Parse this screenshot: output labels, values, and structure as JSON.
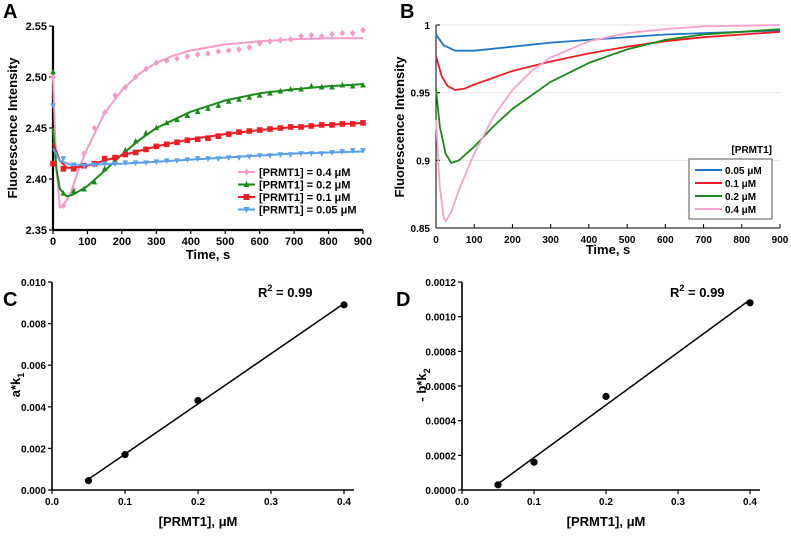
{
  "chart_data": [
    {
      "id": "A",
      "panel_label": "A",
      "type": "scatter",
      "xlabel": "Time, s",
      "ylabel": "Fluorescence Intensity",
      "xlim": [
        0,
        900
      ],
      "ylim": [
        2.35,
        2.55
      ],
      "xticks": [
        "0",
        "100",
        "200",
        "300",
        "400",
        "500",
        "600",
        "700",
        "800",
        "900"
      ],
      "xtick_values": [
        0,
        100,
        200,
        300,
        400,
        500,
        600,
        700,
        800,
        900
      ],
      "yticks": [
        "2.35",
        "2.40",
        "2.45",
        "2.50",
        "2.55"
      ],
      "ytick_values": [
        2.35,
        2.4,
        2.45,
        2.5,
        2.55
      ],
      "legend_position": "bottom-right",
      "marker_x": [
        0,
        30,
        60,
        90,
        120,
        150,
        180,
        210,
        240,
        270,
        300,
        330,
        360,
        390,
        420,
        450,
        480,
        510,
        540,
        570,
        600,
        630,
        660,
        690,
        720,
        750,
        780,
        810,
        840,
        870,
        900
      ],
      "series": [
        {
          "name": "[PRMT1] = 0.4 μM",
          "color": "#f39cc8",
          "marker": "diamond",
          "fit_x": [
            0,
            10,
            20,
            30,
            50,
            75,
            100,
            150,
            200,
            250,
            300,
            350,
            400,
            500,
            600,
            700,
            800,
            900
          ],
          "fit_y": [
            2.5,
            2.41,
            2.372,
            2.374,
            2.385,
            2.41,
            2.43,
            2.465,
            2.487,
            2.503,
            2.514,
            2.521,
            2.526,
            2.532,
            2.535,
            2.537,
            2.538,
            2.538
          ],
          "marker_y": [
            2.5,
            2.374,
            2.39,
            2.425,
            2.45,
            2.465,
            2.482,
            2.49,
            2.5,
            2.508,
            2.514,
            2.516,
            2.518,
            2.52,
            2.522,
            2.523,
            2.525,
            2.526,
            2.527,
            2.529,
            2.533,
            2.535,
            2.536,
            2.537,
            2.54,
            2.541,
            2.54,
            2.542,
            2.543,
            2.543,
            2.546
          ]
        },
        {
          "name": "[PRMT1] = 0.2 μM",
          "color": "#1a8a1a",
          "marker": "triangle-up",
          "fit_x": [
            0,
            10,
            20,
            40,
            60,
            100,
            150,
            200,
            250,
            300,
            400,
            500,
            600,
            700,
            800,
            900
          ],
          "fit_y": [
            2.45,
            2.41,
            2.39,
            2.383,
            2.385,
            2.393,
            2.408,
            2.424,
            2.438,
            2.45,
            2.466,
            2.477,
            2.484,
            2.488,
            2.491,
            2.493
          ],
          "marker_y": [
            2.505,
            2.386,
            2.388,
            2.39,
            2.397,
            2.41,
            2.418,
            2.428,
            2.437,
            2.445,
            2.45,
            2.455,
            2.458,
            2.462,
            2.466,
            2.469,
            2.472,
            2.476,
            2.478,
            2.48,
            2.482,
            2.484,
            2.486,
            2.488,
            2.488,
            2.491,
            2.49,
            2.49,
            2.492,
            2.491,
            2.492
          ]
        },
        {
          "name": "[PRMT1] = 0.1 μM",
          "color": "#ee1c24",
          "marker": "square",
          "fit_x": [
            0,
            20,
            40,
            60,
            100,
            150,
            200,
            300,
            400,
            500,
            600,
            700,
            800,
            900
          ],
          "fit_y": [
            2.435,
            2.418,
            2.411,
            2.411,
            2.413,
            2.418,
            2.423,
            2.432,
            2.439,
            2.444,
            2.448,
            2.451,
            2.453,
            2.455
          ],
          "marker_y": [
            2.415,
            2.41,
            2.41,
            2.413,
            2.415,
            2.42,
            2.421,
            2.424,
            2.426,
            2.429,
            2.432,
            2.434,
            2.436,
            2.438,
            2.439,
            2.44,
            2.442,
            2.444,
            2.446,
            2.447,
            2.448,
            2.449,
            2.45,
            2.451,
            2.451,
            2.452,
            2.453,
            2.453,
            2.454,
            2.454,
            2.455
          ]
        },
        {
          "name": "[PRMT1] = 0.05 μM",
          "color": "#5aa0ea",
          "marker": "triangle-down",
          "fit_x": [
            0,
            20,
            50,
            100,
            200,
            300,
            400,
            500,
            600,
            700,
            800,
            900
          ],
          "fit_y": [
            2.43,
            2.418,
            2.414,
            2.414,
            2.415,
            2.417,
            2.419,
            2.421,
            2.423,
            2.425,
            2.426,
            2.427
          ],
          "marker_y": [
            2.472,
            2.42,
            2.414,
            2.413,
            2.414,
            2.415,
            2.415,
            2.416,
            2.416,
            2.416,
            2.417,
            2.418,
            2.418,
            2.419,
            2.42,
            2.42,
            2.42,
            2.421,
            2.421,
            2.422,
            2.423,
            2.423,
            2.424,
            2.424,
            2.425,
            2.425,
            2.425,
            2.426,
            2.427,
            2.428,
            2.428
          ]
        }
      ]
    },
    {
      "id": "B",
      "panel_label": "B",
      "type": "line",
      "xlabel": "Time, s",
      "ylabel": "Fluorescence Intensity",
      "xlim": [
        0,
        900
      ],
      "ylim": [
        0.85,
        1.0
      ],
      "xticks": [
        "0",
        "100",
        "200",
        "300",
        "400",
        "500",
        "600",
        "700",
        "800",
        "900"
      ],
      "xtick_values": [
        0,
        100,
        200,
        300,
        400,
        500,
        600,
        700,
        800,
        900
      ],
      "yticks": [
        "0.85",
        "0.9",
        "0.95",
        "1"
      ],
      "ytick_values": [
        0.85,
        0.9,
        0.95,
        1.0
      ],
      "grid": true,
      "legend_title": "[PRMT1]",
      "legend_position": "bottom-right",
      "series": [
        {
          "name": "0.05 μM",
          "color": "#1f77c4",
          "x": [
            0,
            20,
            50,
            75,
            100,
            200,
            300,
            400,
            500,
            600,
            700,
            800,
            900
          ],
          "y": [
            0.993,
            0.985,
            0.981,
            0.981,
            0.981,
            0.984,
            0.987,
            0.989,
            0.991,
            0.993,
            0.994,
            0.995,
            0.996
          ]
        },
        {
          "name": "0.1 μM",
          "color": "#ee1c24",
          "x": [
            0,
            15,
            30,
            50,
            75,
            100,
            150,
            200,
            300,
            400,
            500,
            600,
            700,
            800,
            900
          ],
          "y": [
            0.977,
            0.962,
            0.955,
            0.952,
            0.953,
            0.956,
            0.961,
            0.966,
            0.973,
            0.979,
            0.984,
            0.988,
            0.991,
            0.993,
            0.995
          ]
        },
        {
          "name": "0.2 μM",
          "color": "#1a8a1a",
          "x": [
            0,
            10,
            25,
            40,
            60,
            100,
            150,
            200,
            300,
            400,
            500,
            600,
            700,
            800,
            900
          ],
          "y": [
            0.953,
            0.925,
            0.905,
            0.898,
            0.9,
            0.91,
            0.925,
            0.938,
            0.958,
            0.972,
            0.982,
            0.989,
            0.993,
            0.995,
            0.997
          ]
        },
        {
          "name": "0.4 μM",
          "color": "#f7a1cf",
          "x": [
            0,
            10,
            20,
            25,
            40,
            60,
            100,
            150,
            200,
            250,
            300,
            400,
            500,
            600,
            700,
            800,
            900
          ],
          "y": [
            0.93,
            0.88,
            0.858,
            0.855,
            0.862,
            0.878,
            0.905,
            0.932,
            0.952,
            0.966,
            0.976,
            0.988,
            0.994,
            0.997,
            0.999,
            0.9995,
            1.0
          ]
        }
      ]
    },
    {
      "id": "C",
      "panel_label": "C",
      "type": "scatter",
      "xlabel": "[PRMT1], μM",
      "ylabel": {
        "base": "a*k",
        "sub": "1"
      },
      "xlim": [
        0,
        0.4
      ],
      "ylim": [
        0,
        0.01
      ],
      "xticks": [
        "0.0",
        "0.1",
        "0.2",
        "0.3",
        "0.4"
      ],
      "xtick_values": [
        0,
        0.1,
        0.2,
        0.3,
        0.4
      ],
      "yticks": [
        "0.000",
        "0.002",
        "0.004",
        "0.006",
        "0.008",
        "0.010"
      ],
      "ytick_values": [
        0,
        0.002,
        0.004,
        0.006,
        0.008,
        0.01
      ],
      "annotation": {
        "base": "R",
        "sup": "2",
        "rest": " = 0.99"
      },
      "x": [
        0.05,
        0.1,
        0.2,
        0.4
      ],
      "y": [
        0.00045,
        0.0017,
        0.0043,
        0.0089
      ],
      "fit": "linear"
    },
    {
      "id": "D",
      "panel_label": "D",
      "type": "scatter",
      "xlabel": "[PRMT1], μM",
      "ylabel": {
        "base": "- b*k",
        "sub": "2"
      },
      "xlim": [
        0,
        0.4
      ],
      "ylim": [
        0,
        0.0012
      ],
      "xticks": [
        "0.0",
        "0.1",
        "0.2",
        "0.3",
        "0.4"
      ],
      "xtick_values": [
        0,
        0.1,
        0.2,
        0.3,
        0.4
      ],
      "yticks": [
        "0.0000",
        "0.0002",
        "0.0004",
        "0.0006",
        "0.0008",
        "0.0010",
        "0.0012"
      ],
      "ytick_values": [
        0,
        0.0002,
        0.0004,
        0.0006,
        0.0008,
        0.001,
        0.0012
      ],
      "annotation": {
        "base": "R",
        "sup": "2",
        "rest": " = 0.99"
      },
      "x": [
        0.05,
        0.1,
        0.2,
        0.4
      ],
      "y": [
        3e-05,
        0.00016,
        0.00054,
        0.00108
      ],
      "fit": "linear"
    }
  ]
}
